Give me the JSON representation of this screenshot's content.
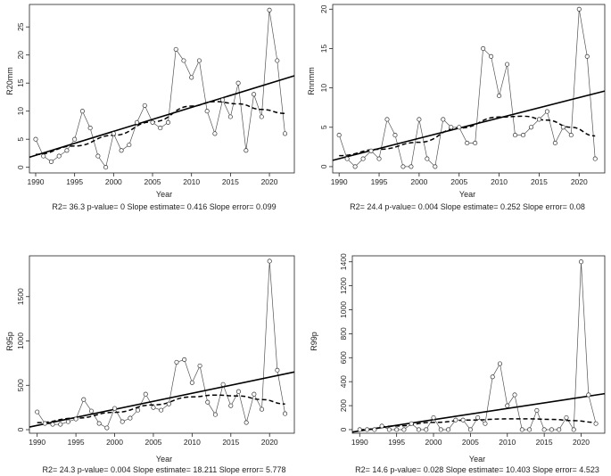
{
  "chart_data": [
    {
      "type": "line",
      "ylabel": "R20mm",
      "xlabel": "Year",
      "stats": "R2= 36.3  p-value= 0  Slope estimate= 0.416  Slope error= 0.099",
      "xlim": [
        1989.2,
        2023.2
      ],
      "ylim": [
        -1,
        29
      ],
      "xticks": [
        1990,
        1995,
        2000,
        2005,
        2010,
        2015,
        2020
      ],
      "yticks": [
        0,
        5,
        10,
        15,
        20,
        25
      ],
      "x": [
        1990,
        1991,
        1992,
        1993,
        1994,
        1995,
        1996,
        1997,
        1998,
        1999,
        2000,
        2001,
        2002,
        2003,
        2004,
        2005,
        2006,
        2007,
        2008,
        2009,
        2010,
        2011,
        2012,
        2013,
        2014,
        2015,
        2016,
        2017,
        2018,
        2019,
        2020,
        2021,
        2022
      ],
      "values": [
        5,
        2,
        1,
        2,
        3,
        5,
        10,
        7,
        2,
        0,
        6,
        3,
        4,
        8,
        11,
        8,
        7,
        8,
        21,
        19,
        16,
        19,
        10,
        6,
        12,
        9,
        15,
        3,
        13,
        9,
        28,
        19,
        6
      ],
      "trend_linear": [
        [
          1989.2,
          1.8
        ],
        [
          2023.2,
          16.3
        ]
      ],
      "trend_quadratic": [
        [
          1990,
          2.3
        ],
        [
          1995,
          3.8
        ],
        [
          2000,
          5.7
        ],
        [
          2005,
          8.1
        ],
        [
          2010,
          10.9
        ],
        [
          2013,
          11.7
        ],
        [
          2016,
          11.3
        ],
        [
          2019,
          10.3
        ],
        [
          2022,
          9.6
        ]
      ]
    },
    {
      "type": "line",
      "ylabel": "Rnnmm",
      "xlabel": "Year",
      "stats": "R2= 24.4  p-value= 0.004  Slope estimate= 0.252  Slope error= 0.08",
      "xlim": [
        1989.2,
        2023.2
      ],
      "ylim": [
        -0.8,
        20.6
      ],
      "xticks": [
        1990,
        1995,
        2000,
        2005,
        2010,
        2015,
        2020
      ],
      "yticks": [
        0,
        5,
        10,
        15,
        20
      ],
      "x": [
        1990,
        1991,
        1992,
        1993,
        1994,
        1995,
        1996,
        1997,
        1998,
        1999,
        2000,
        2001,
        2002,
        2003,
        2004,
        2005,
        2006,
        2007,
        2008,
        2009,
        2010,
        2011,
        2012,
        2013,
        2014,
        2015,
        2016,
        2017,
        2018,
        2019,
        2020,
        2021,
        2022
      ],
      "values": [
        4,
        1,
        0,
        1,
        2,
        1,
        6,
        4,
        0,
        0,
        6,
        1,
        0,
        6,
        5,
        5,
        3,
        3,
        15,
        14,
        9,
        13,
        4,
        4,
        5,
        6,
        7,
        3,
        5,
        4,
        20,
        14,
        1
      ],
      "trend_linear": [
        [
          1989.2,
          0.8
        ],
        [
          2023.2,
          9.6
        ]
      ],
      "trend_quadratic": [
        [
          1990,
          1.4
        ],
        [
          1995,
          2.2
        ],
        [
          2000,
          3.1
        ],
        [
          2005,
          4.9
        ],
        [
          2010,
          6.3
        ],
        [
          2013,
          6.4
        ],
        [
          2016,
          5.9
        ],
        [
          2019,
          5.0
        ],
        [
          2022,
          3.9
        ]
      ]
    },
    {
      "type": "line",
      "ylabel": "R95p",
      "xlabel": "Year",
      "stats": "R2= 24.3  p-value= 0.004  Slope estimate= 18.211  Slope error= 5.778",
      "xlim": [
        1989.0,
        2023.2
      ],
      "ylim": [
        -40,
        1960
      ],
      "xticks": [
        1990,
        1995,
        2000,
        2005,
        2010,
        2015,
        2020
      ],
      "yticks": [
        0,
        500,
        1000,
        1500
      ],
      "x": [
        1990,
        1991,
        1992,
        1993,
        1994,
        1995,
        1996,
        1997,
        1998,
        1999,
        2000,
        2001,
        2002,
        2003,
        2004,
        2005,
        2006,
        2007,
        2008,
        2009,
        2010,
        2011,
        2012,
        2013,
        2014,
        2015,
        2016,
        2017,
        2018,
        2019,
        2020,
        2021,
        2022
      ],
      "values": [
        200,
        70,
        60,
        60,
        90,
        120,
        340,
        210,
        70,
        20,
        240,
        90,
        130,
        220,
        400,
        250,
        220,
        290,
        760,
        790,
        530,
        720,
        310,
        170,
        510,
        270,
        430,
        80,
        400,
        230,
        1900,
        670,
        180
      ],
      "trend_linear": [
        [
          1989.0,
          30
        ],
        [
          2023.2,
          650
        ]
      ],
      "trend_quadratic": [
        [
          1990,
          80
        ],
        [
          1995,
          130
        ],
        [
          2000,
          195
        ],
        [
          2005,
          280
        ],
        [
          2010,
          370
        ],
        [
          2013,
          390
        ],
        [
          2016,
          380
        ],
        [
          2019,
          340
        ],
        [
          2022,
          290
        ]
      ]
    },
    {
      "type": "line",
      "ylabel": "R99p",
      "xlabel": "Year",
      "stats": "R2= 14.6  p-value= 0.028  Slope estimate= 10.403  Slope error= 4.523",
      "xlim": [
        1989.0,
        2023.2
      ],
      "ylim": [
        -30,
        1450
      ],
      "xticks": [
        1990,
        1995,
        2000,
        2005,
        2010,
        2015,
        2020
      ],
      "yticks": [
        0,
        200,
        400,
        600,
        800,
        1000,
        1200,
        1400
      ],
      "x": [
        1990,
        1991,
        1992,
        1993,
        1994,
        1995,
        1996,
        1997,
        1998,
        1999,
        2000,
        2001,
        2002,
        2003,
        2004,
        2005,
        2006,
        2007,
        2008,
        2009,
        2010,
        2011,
        2012,
        2013,
        2014,
        2015,
        2016,
        2017,
        2018,
        2019,
        2020,
        2021,
        2022
      ],
      "values": [
        0,
        0,
        0,
        30,
        0,
        0,
        0,
        50,
        0,
        0,
        100,
        0,
        0,
        80,
        80,
        0,
        100,
        50,
        440,
        550,
        200,
        290,
        0,
        0,
        160,
        0,
        0,
        0,
        100,
        0,
        1400,
        290,
        50
      ],
      "trend_linear": [
        [
          1989.0,
          -20
        ],
        [
          2023.2,
          300
        ]
      ],
      "trend_quadratic": [
        [
          1990,
          0
        ],
        [
          1995,
          30
        ],
        [
          2000,
          60
        ],
        [
          2005,
          80
        ],
        [
          2010,
          90
        ],
        [
          2013,
          90
        ],
        [
          2016,
          85
        ],
        [
          2019,
          75
        ],
        [
          2022,
          60
        ]
      ]
    }
  ]
}
